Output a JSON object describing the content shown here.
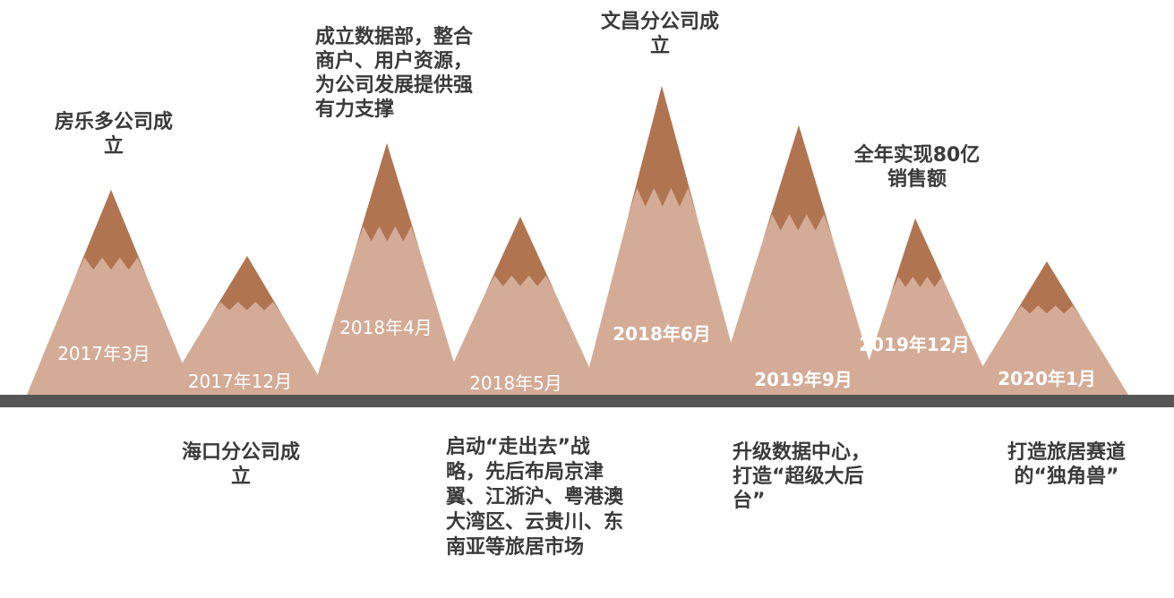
{
  "colors": {
    "mountain_base": "#d4ab96",
    "mountain_cap": "#b17451",
    "ground": "#555555",
    "date_text": "#ffffff",
    "event_text": "#3a3a3a"
  },
  "milestones": [
    {
      "date": "2017年3月",
      "event": "房乐多公司成立"
    },
    {
      "date": "2017年12月",
      "event": "海口分公司成立"
    },
    {
      "date": "2018年4月",
      "event": "成立数据部，整合商户、用户资源，为公司发展提供强有力支撑"
    },
    {
      "date": "2018年5月",
      "event": "启动“走出去”战略，先后布局京津翼、江浙沪、粤港澳大湾区、云贵川、东南亚等旅居市场"
    },
    {
      "date": "2018年6月",
      "event": "文昌分公司成立"
    },
    {
      "date": "2019年9月",
      "event": "升级数据中心，打造“超级大后台”"
    },
    {
      "date": "2019年12月",
      "event": "全年实现80亿销售额"
    },
    {
      "date": "2020年1月",
      "event": "打造旅居赛道的“独角兽”"
    }
  ]
}
